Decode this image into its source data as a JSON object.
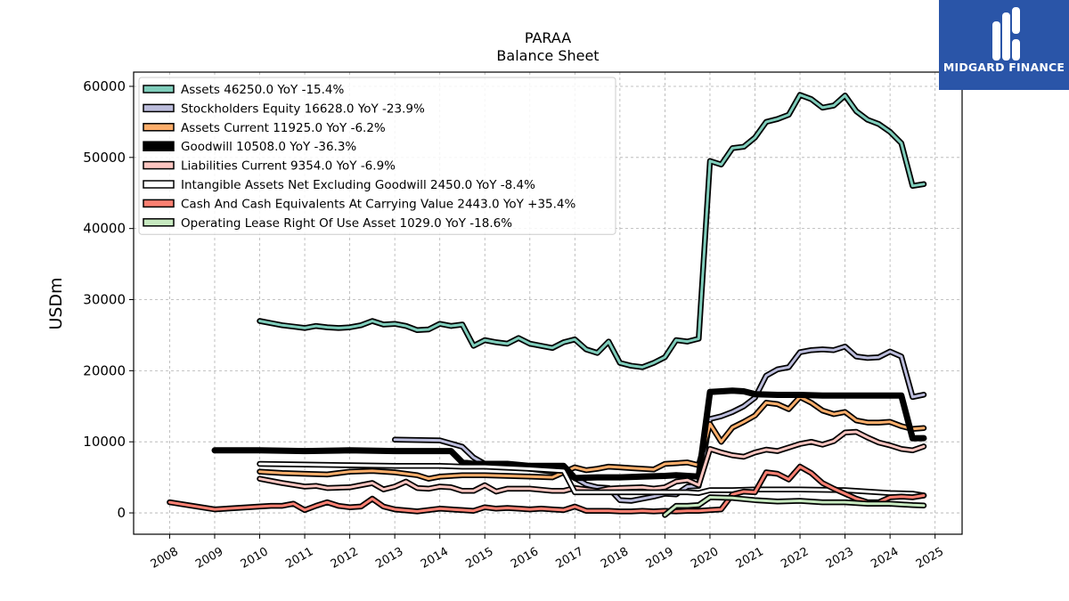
{
  "chart_data": {
    "type": "line",
    "title": "PARAA",
    "subtitle": "Balance  Sheet",
    "ylabel": "USDm",
    "xlabel": "",
    "ylim": [
      -3000,
      62000
    ],
    "xlim": [
      2007.2,
      2025.6
    ],
    "yticks": [
      0,
      10000,
      20000,
      30000,
      40000,
      50000,
      60000
    ],
    "xticks": [
      2008,
      2009,
      2010,
      2011,
      2012,
      2013,
      2014,
      2015,
      2016,
      2017,
      2018,
      2019,
      2020,
      2021,
      2022,
      2023,
      2024,
      2025
    ],
    "grid": true,
    "legend_position": "top-left",
    "series": [
      {
        "name": "Assets",
        "legend": "Assets  46250.0 YoY -15.4%",
        "color": "#7fcdbb",
        "width": 3,
        "x": [
          2010.0,
          2010.25,
          2010.5,
          2010.75,
          2011.0,
          2011.25,
          2011.5,
          2011.75,
          2012.0,
          2012.25,
          2012.5,
          2012.75,
          2013.0,
          2013.25,
          2013.5,
          2013.75,
          2014.0,
          2014.25,
          2014.5,
          2014.75,
          2015.0,
          2015.25,
          2015.5,
          2015.75,
          2016.0,
          2016.25,
          2016.5,
          2016.75,
          2017.0,
          2017.25,
          2017.5,
          2017.75,
          2018.0,
          2018.25,
          2018.5,
          2018.75,
          2019.0,
          2019.25,
          2019.5,
          2019.75,
          2020.0,
          2020.25,
          2020.5,
          2020.75,
          2021.0,
          2021.25,
          2021.5,
          2021.75,
          2022.0,
          2022.25,
          2022.5,
          2022.75,
          2023.0,
          2023.25,
          2023.5,
          2023.75,
          2024.0,
          2024.25,
          2024.5,
          2024.75
        ],
        "y": [
          27000,
          26700,
          26400,
          26200,
          26000,
          26300,
          26100,
          26000,
          26100,
          26400,
          27000,
          26500,
          26600,
          26300,
          25700,
          25800,
          26600,
          26300,
          26500,
          23500,
          24300,
          24000,
          23800,
          24600,
          23800,
          23500,
          23200,
          24000,
          24400,
          23000,
          22500,
          24100,
          21100,
          20700,
          20500,
          21100,
          21900,
          24300,
          24100,
          24500,
          49500,
          49000,
          51300,
          51500,
          52800,
          55000,
          55400,
          56000,
          58800,
          58200,
          57000,
          57300,
          58700,
          56500,
          55300,
          54700,
          53600,
          52000,
          46000,
          46250
        ]
      },
      {
        "name": "Stockholders Equity",
        "legend": "Stockholders Equity  16628.0 YoY -23.9%",
        "color": "#bcbddc",
        "width": 3,
        "x": [
          2013.0,
          2014.0,
          2014.5,
          2014.75,
          2015.0,
          2015.5,
          2016.0,
          2016.5,
          2016.75,
          2017.0,
          2017.25,
          2017.5,
          2017.75,
          2018.0,
          2018.25,
          2018.5,
          2018.75,
          2019.0,
          2019.25,
          2019.5,
          2019.75,
          2020.0,
          2020.25,
          2020.5,
          2020.75,
          2021.0,
          2021.25,
          2021.5,
          2021.75,
          2022.0,
          2022.25,
          2022.5,
          2022.75,
          2023.0,
          2023.25,
          2023.5,
          2023.75,
          2024.0,
          2024.25,
          2024.5,
          2024.75
        ],
        "y": [
          10300,
          10200,
          9300,
          7800,
          6900,
          6500,
          6200,
          5800,
          5700,
          4900,
          4000,
          3600,
          3500,
          1800,
          1700,
          2000,
          2300,
          2700,
          2600,
          3700,
          3800,
          13200,
          13600,
          14200,
          15000,
          16200,
          19300,
          20200,
          20500,
          22600,
          22900,
          23000,
          22900,
          23400,
          22000,
          21800,
          21900,
          22700,
          22000,
          16300,
          16628
        ]
      },
      {
        "name": "Assets Current",
        "legend": "Assets Current  11925.0 YoY -6.2%",
        "color": "#fdae6b",
        "width": 3,
        "x": [
          2010.0,
          2010.5,
          2011.0,
          2011.5,
          2012.0,
          2012.5,
          2013.0,
          2013.5,
          2013.75,
          2014.0,
          2014.5,
          2015.0,
          2015.5,
          2016.0,
          2016.5,
          2017.0,
          2017.25,
          2017.5,
          2017.75,
          2018.0,
          2018.25,
          2018.5,
          2018.75,
          2019.0,
          2019.25,
          2019.5,
          2019.75,
          2020.0,
          2020.25,
          2020.5,
          2020.75,
          2021.0,
          2021.25,
          2021.5,
          2021.75,
          2022.0,
          2022.25,
          2022.5,
          2022.75,
          2023.0,
          2023.25,
          2023.5,
          2023.75,
          2024.0,
          2024.25,
          2024.5,
          2024.75
        ],
        "y": [
          5800,
          5600,
          5500,
          5400,
          5800,
          5900,
          5700,
          5300,
          4800,
          5100,
          5300,
          5300,
          5200,
          5100,
          5000,
          6400,
          6000,
          6200,
          6500,
          6400,
          6300,
          6200,
          6100,
          6900,
          7000,
          7100,
          6700,
          12500,
          10000,
          12000,
          12800,
          13700,
          15500,
          15300,
          14600,
          16300,
          15500,
          14400,
          13900,
          14200,
          13000,
          12700,
          12700,
          12800,
          12200,
          11800,
          11925
        ]
      },
      {
        "name": "Goodwill",
        "legend": "Goodwill  10508.0 YoY -36.3%",
        "color": "#000000",
        "width": 7,
        "x": [
          2009.0,
          2010.0,
          2011.0,
          2012.0,
          2013.0,
          2014.0,
          2014.25,
          2014.5,
          2014.75,
          2015.0,
          2015.5,
          2016.0,
          2016.5,
          2016.75,
          2017.0,
          2017.5,
          2018.0,
          2018.5,
          2019.0,
          2019.25,
          2019.5,
          2019.75,
          2020.0,
          2020.25,
          2020.5,
          2020.75,
          2021.0,
          2021.5,
          2022.0,
          2022.5,
          2023.0,
          2023.5,
          2024.0,
          2024.25,
          2024.5,
          2024.75
        ],
        "y": [
          8800,
          8800,
          8700,
          8800,
          8700,
          8700,
          8700,
          7100,
          6900,
          6900,
          6900,
          6600,
          6600,
          6600,
          4900,
          5000,
          5000,
          5100,
          5200,
          5300,
          5200,
          5100,
          17000,
          17100,
          17200,
          17100,
          16700,
          16600,
          16600,
          16500,
          16500,
          16500,
          16500,
          16500,
          10500,
          10508
        ]
      },
      {
        "name": "Liabilities Current",
        "legend": "Liabilities Current  9354.0 YoY -6.9%",
        "color": "#fcc5c0",
        "width": 3,
        "x": [
          2010.0,
          2010.5,
          2011.0,
          2011.25,
          2011.5,
          2012.0,
          2012.5,
          2012.75,
          2013.0,
          2013.25,
          2013.5,
          2013.75,
          2014.0,
          2014.25,
          2014.5,
          2014.75,
          2015.0,
          2015.25,
          2015.5,
          2016.0,
          2016.5,
          2016.75,
          2017.0,
          2017.25,
          2017.5,
          2017.75,
          2018.0,
          2018.5,
          2018.75,
          2019.0,
          2019.25,
          2019.5,
          2019.75,
          2020.0,
          2020.25,
          2020.5,
          2020.75,
          2021.0,
          2021.25,
          2021.5,
          2021.75,
          2022.0,
          2022.25,
          2022.5,
          2022.75,
          2023.0,
          2023.25,
          2023.5,
          2023.75,
          2024.0,
          2024.25,
          2024.5,
          2024.75
        ],
        "y": [
          4800,
          4200,
          3700,
          3800,
          3500,
          3600,
          4200,
          3300,
          3700,
          4400,
          3500,
          3400,
          3700,
          3600,
          3100,
          3100,
          3900,
          3000,
          3400,
          3400,
          3100,
          3100,
          3500,
          3300,
          3100,
          3400,
          3500,
          3600,
          3400,
          3600,
          4400,
          4600,
          3900,
          9000,
          8500,
          8100,
          7900,
          8500,
          8900,
          8700,
          9200,
          9700,
          10000,
          9600,
          10100,
          11300,
          11400,
          10600,
          9900,
          9500,
          9000,
          8800,
          9354
        ]
      },
      {
        "name": "Intangible Assets Net Excluding Goodwill",
        "legend": "Intangible Assets Net Excluding Goodwill  2450.0 YoY -8.4%",
        "color": "#ffffff",
        "width": 3,
        "x": [
          2010.0,
          2011.0,
          2012.0,
          2013.0,
          2014.0,
          2014.5,
          2015.0,
          2016.0,
          2016.75,
          2017.0,
          2017.5,
          2018.0,
          2018.5,
          2019.0,
          2019.5,
          2019.75,
          2020.0,
          2020.5,
          2021.0,
          2022.0,
          2023.0,
          2024.0,
          2024.5,
          2024.75
        ],
        "y": [
          6900,
          6800,
          6700,
          6600,
          6600,
          6500,
          6500,
          6200,
          5900,
          2900,
          2900,
          2900,
          2900,
          2900,
          2900,
          2800,
          3200,
          3200,
          3300,
          3300,
          3200,
          2800,
          2700,
          2450
        ]
      },
      {
        "name": "Cash And Cash Equivalents At Carrying Value",
        "legend": "Cash And Cash Equivalents At Carrying Value  2443.0 YoY +35.4%",
        "color": "#fb8072",
        "width": 3,
        "x": [
          2008.0,
          2008.5,
          2009.0,
          2009.5,
          2010.0,
          2010.25,
          2010.5,
          2010.75,
          2011.0,
          2011.25,
          2011.5,
          2011.75,
          2012.0,
          2012.25,
          2012.5,
          2012.75,
          2013.0,
          2013.5,
          2014.0,
          2014.5,
          2014.75,
          2015.0,
          2015.25,
          2015.5,
          2015.75,
          2016.0,
          2016.25,
          2016.5,
          2016.75,
          2017.0,
          2017.25,
          2017.5,
          2017.75,
          2018.0,
          2018.25,
          2018.5,
          2018.75,
          2019.0,
          2019.25,
          2019.5,
          2019.75,
          2020.0,
          2020.25,
          2020.5,
          2020.75,
          2021.0,
          2021.25,
          2021.5,
          2021.75,
          2022.0,
          2022.25,
          2022.5,
          2022.75,
          2023.0,
          2023.25,
          2023.5,
          2023.75,
          2024.0,
          2024.25,
          2024.5,
          2024.75
        ],
        "y": [
          1500,
          1000,
          500,
          700,
          900,
          1000,
          1000,
          1300,
          400,
          1000,
          1500,
          1000,
          800,
          900,
          2000,
          900,
          500,
          200,
          600,
          400,
          300,
          800,
          600,
          700,
          600,
          500,
          600,
          500,
          400,
          900,
          300,
          300,
          300,
          200,
          200,
          300,
          200,
          300,
          200,
          300,
          300,
          400,
          500,
          2600,
          3000,
          2900,
          5700,
          5500,
          4700,
          6500,
          5600,
          4200,
          3400,
          2700,
          2000,
          1500,
          1500,
          2200,
          2300,
          2200,
          2443
        ]
      },
      {
        "name": "Operating Lease Right Of Use Asset",
        "legend": "Operating Lease Right Of Use Asset  1029.0 YoY -18.6%",
        "color": "#c7e9c0",
        "width": 3,
        "x": [
          2019.0,
          2019.25,
          2019.5,
          2019.75,
          2020.0,
          2020.5,
          2021.0,
          2021.5,
          2022.0,
          2022.5,
          2023.0,
          2023.5,
          2024.0,
          2024.5,
          2024.75
        ],
        "y": [
          -300,
          1000,
          1000,
          1100,
          2200,
          2100,
          1800,
          1600,
          1700,
          1500,
          1500,
          1300,
          1300,
          1100,
          1029
        ]
      }
    ]
  },
  "logo": {
    "text": "MIDGARD FINANCE",
    "color": "#2a55a8"
  }
}
